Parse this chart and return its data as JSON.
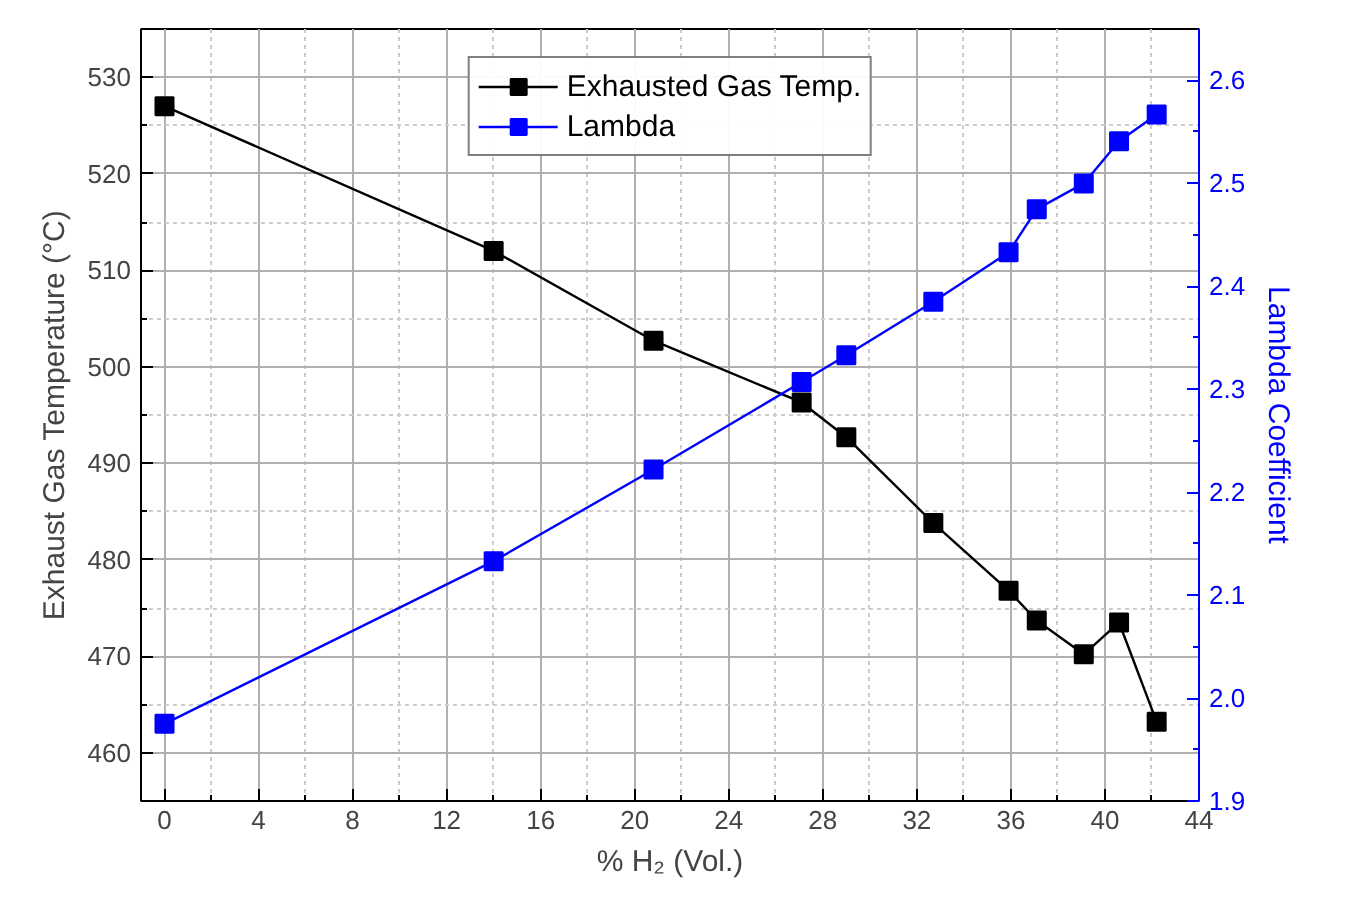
{
  "chart_data": {
    "type": "line",
    "xlabel": "% H₂ (Vol.)",
    "ylabel": "Exhaust Gas Temperature (°C)",
    "y2label": "Lambda Coefficient",
    "x": [
      0,
      14,
      20.8,
      27.1,
      29,
      32.7,
      35.9,
      37.1,
      39.1,
      40.6,
      42.2
    ],
    "series": [
      {
        "name": "Exhausted Gas Temp.",
        "color": "#000000",
        "values": [
          527,
          512,
          502.7,
          496.3,
          492.7,
          483.8,
          476.8,
          473.7,
          470.2,
          473.5,
          463.2
        ]
      },
      {
        "name": "Lambda",
        "color": "#0000ff",
        "axis": "y2",
        "values": [
          1.975,
          2.133,
          2.222,
          2.307,
          2.333,
          2.385,
          2.433,
          2.475,
          2.5,
          2.541,
          2.567
        ]
      }
    ],
    "xlim": [
      -1,
      44
    ],
    "xticks": [
      0,
      4,
      8,
      12,
      16,
      20,
      24,
      28,
      32,
      36,
      40,
      44
    ],
    "ylim": [
      455,
      535
    ],
    "yticks": [
      460,
      470,
      480,
      490,
      500,
      510,
      520,
      530
    ],
    "y2lim": [
      1.9,
      2.65
    ],
    "y2ticks": [
      1.9,
      {
        "value": 2.0,
        "label": "2.0"
      },
      2.1,
      2.2,
      2.3,
      2.4,
      2.5,
      2.6
    ],
    "grid": true,
    "legend": "top",
    "marker": "square",
    "line_style": "solid"
  }
}
